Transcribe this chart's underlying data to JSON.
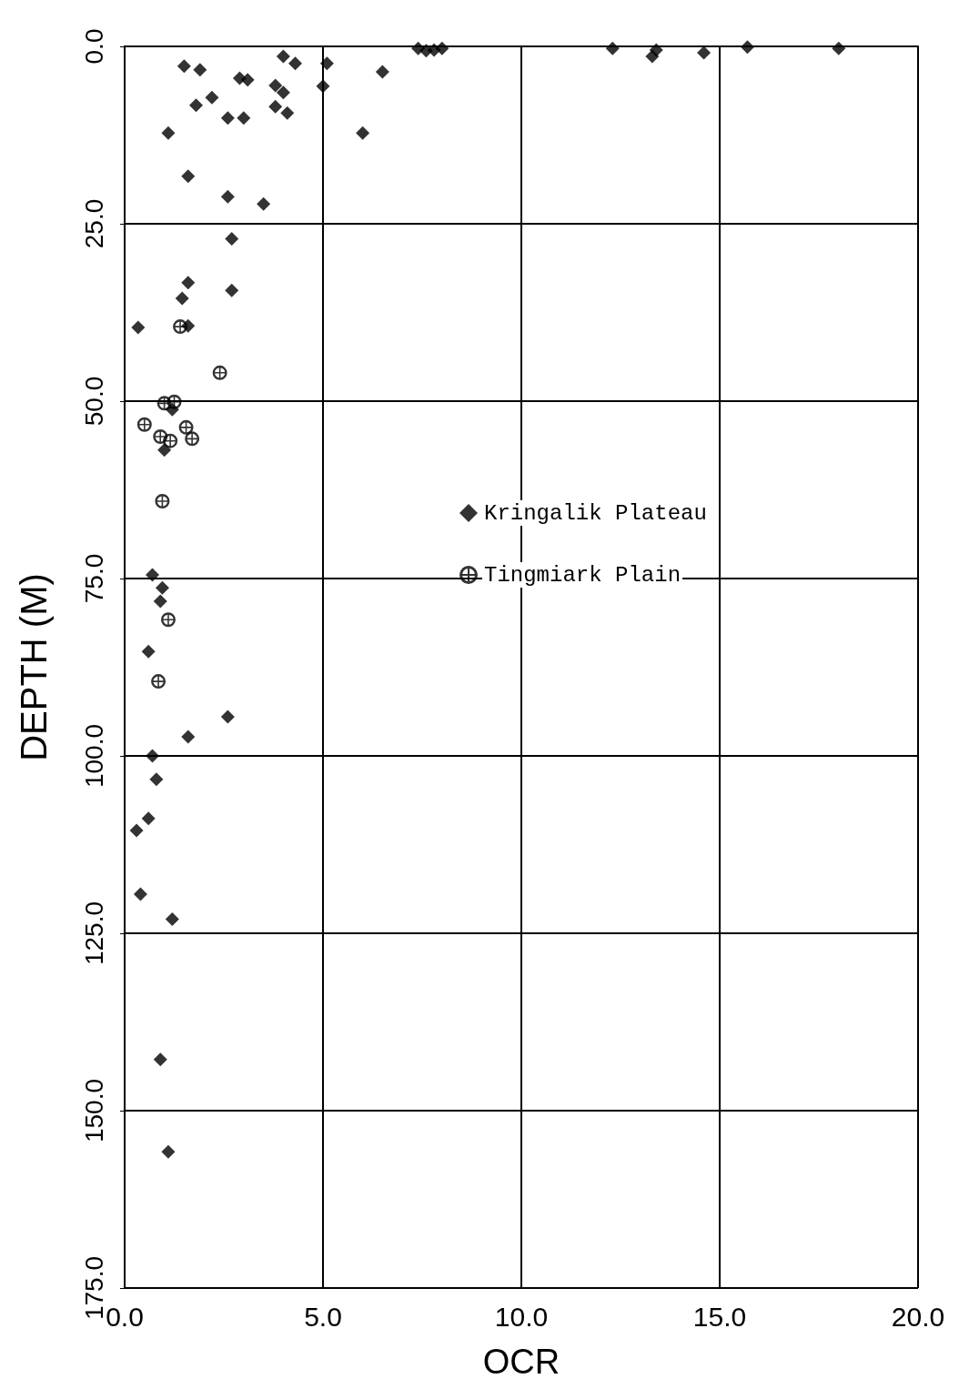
{
  "chart_data": {
    "type": "scatter",
    "xlabel": "OCR",
    "ylabel": "DEPTH (M)",
    "xlim": [
      0,
      20
    ],
    "xticks": [
      {
        "value": 0,
        "label": "0.0"
      },
      {
        "value": 5,
        "label": "5.0"
      },
      {
        "value": 10,
        "label": "10.0"
      },
      {
        "value": 15,
        "label": "15.0"
      },
      {
        "value": 20,
        "label": "20.0"
      }
    ],
    "ylim": [
      175,
      0
    ],
    "yticks": [
      {
        "value": 0,
        "label": "0.0"
      },
      {
        "value": 25,
        "label": "25.0"
      },
      {
        "value": 50,
        "label": "50.0"
      },
      {
        "value": 75,
        "label": "75.0"
      },
      {
        "value": 100,
        "label": "100.0"
      },
      {
        "value": 125,
        "label": "125.0"
      },
      {
        "value": 150,
        "label": "150.0"
      },
      {
        "value": 175,
        "label": "175.0"
      }
    ],
    "grid": true,
    "legend": "center",
    "series": [
      {
        "name": "Kringalik Plateau",
        "color": "#000000",
        "marker": "diamond",
        "x": [
          1.5,
          1.9,
          2.9,
          3.1,
          4.0,
          4.3,
          5.1,
          5.0,
          3.8,
          4.0,
          2.2,
          1.8,
          3.8,
          4.1,
          2.6,
          3.0,
          1.1,
          6.0,
          6.5,
          1.6,
          2.6,
          3.5,
          2.7,
          1.6,
          2.7,
          1.45,
          0.34,
          1.6,
          1.2,
          1.0,
          7.4,
          7.6,
          7.8,
          8.0,
          12.3,
          13.3,
          13.4,
          14.6,
          15.7,
          18.0,
          0.7,
          0.95,
          0.9,
          0.6,
          2.6,
          1.6,
          0.7,
          0.8,
          0.6,
          0.3,
          0.4,
          1.2,
          0.9,
          1.1
        ],
        "values": [
          2.8,
          3.3,
          4.5,
          4.7,
          1.4,
          2.4,
          2.4,
          5.6,
          5.5,
          6.5,
          7.2,
          8.3,
          8.5,
          9.4,
          10.1,
          10.1,
          12.2,
          12.2,
          3.6,
          18.3,
          21.2,
          22.2,
          27.1,
          33.3,
          34.4,
          35.5,
          39.6,
          39.4,
          51.2,
          56.9,
          0.3,
          0.6,
          0.5,
          0.3,
          0.3,
          1.4,
          0.5,
          0.9,
          0.1,
          0.3,
          74.5,
          76.3,
          78.2,
          85.3,
          94.5,
          97.3,
          100,
          103.3,
          108.8,
          110.5,
          119.5,
          123,
          142.8,
          155.8
        ]
      },
      {
        "name": "Tingmiark Plain",
        "color": "#000000",
        "marker": "circle",
        "x": [
          1.4,
          2.4,
          1.0,
          1.25,
          0.5,
          1.55,
          1.7,
          0.9,
          1.15,
          0.95,
          1.1,
          0.85
        ],
        "values": [
          39.5,
          46,
          50.3,
          50.1,
          53.3,
          53.7,
          55.3,
          55,
          55.6,
          64.1,
          80.8,
          89.5
        ]
      }
    ]
  }
}
